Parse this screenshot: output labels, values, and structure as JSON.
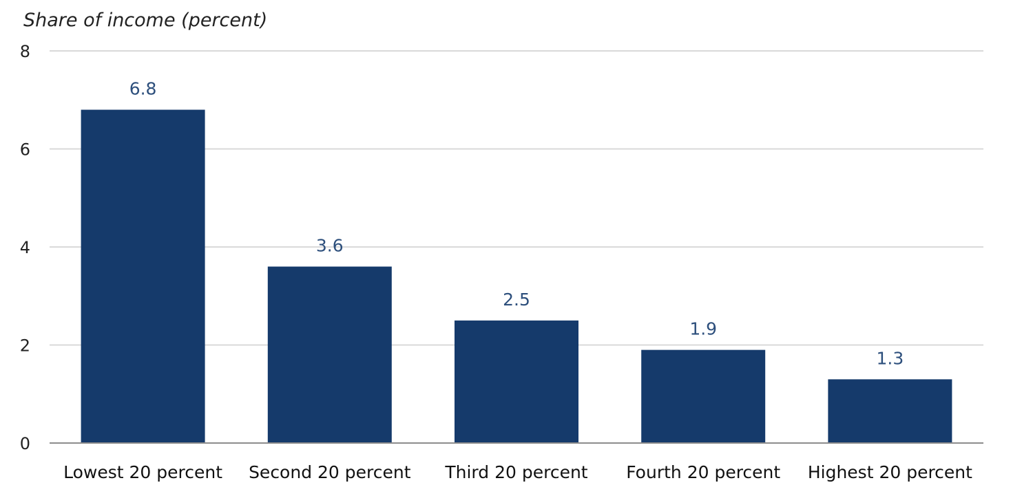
{
  "chart_data": {
    "type": "bar",
    "ylabel": "Share of income (percent)",
    "categories": [
      "Lowest 20 percent",
      "Second 20 percent",
      "Third 20 percent",
      "Fourth 20 percent",
      "Highest 20 percent"
    ],
    "values": [
      6.8,
      3.6,
      2.5,
      1.9,
      1.3
    ],
    "data_labels": [
      "6.8",
      "3.6",
      "2.5",
      "1.9",
      "1.3"
    ],
    "ylim": [
      0,
      8
    ],
    "yticks": [
      0,
      2,
      4,
      6,
      8
    ],
    "ytick_labels": [
      "0",
      "2",
      "4",
      "6",
      "8"
    ],
    "grid": true,
    "colors": {
      "bar": "#153a6b",
      "value_label": "#2d4f7c",
      "grid": "#d9d9d9",
      "axis": "#8c8c8c"
    }
  }
}
